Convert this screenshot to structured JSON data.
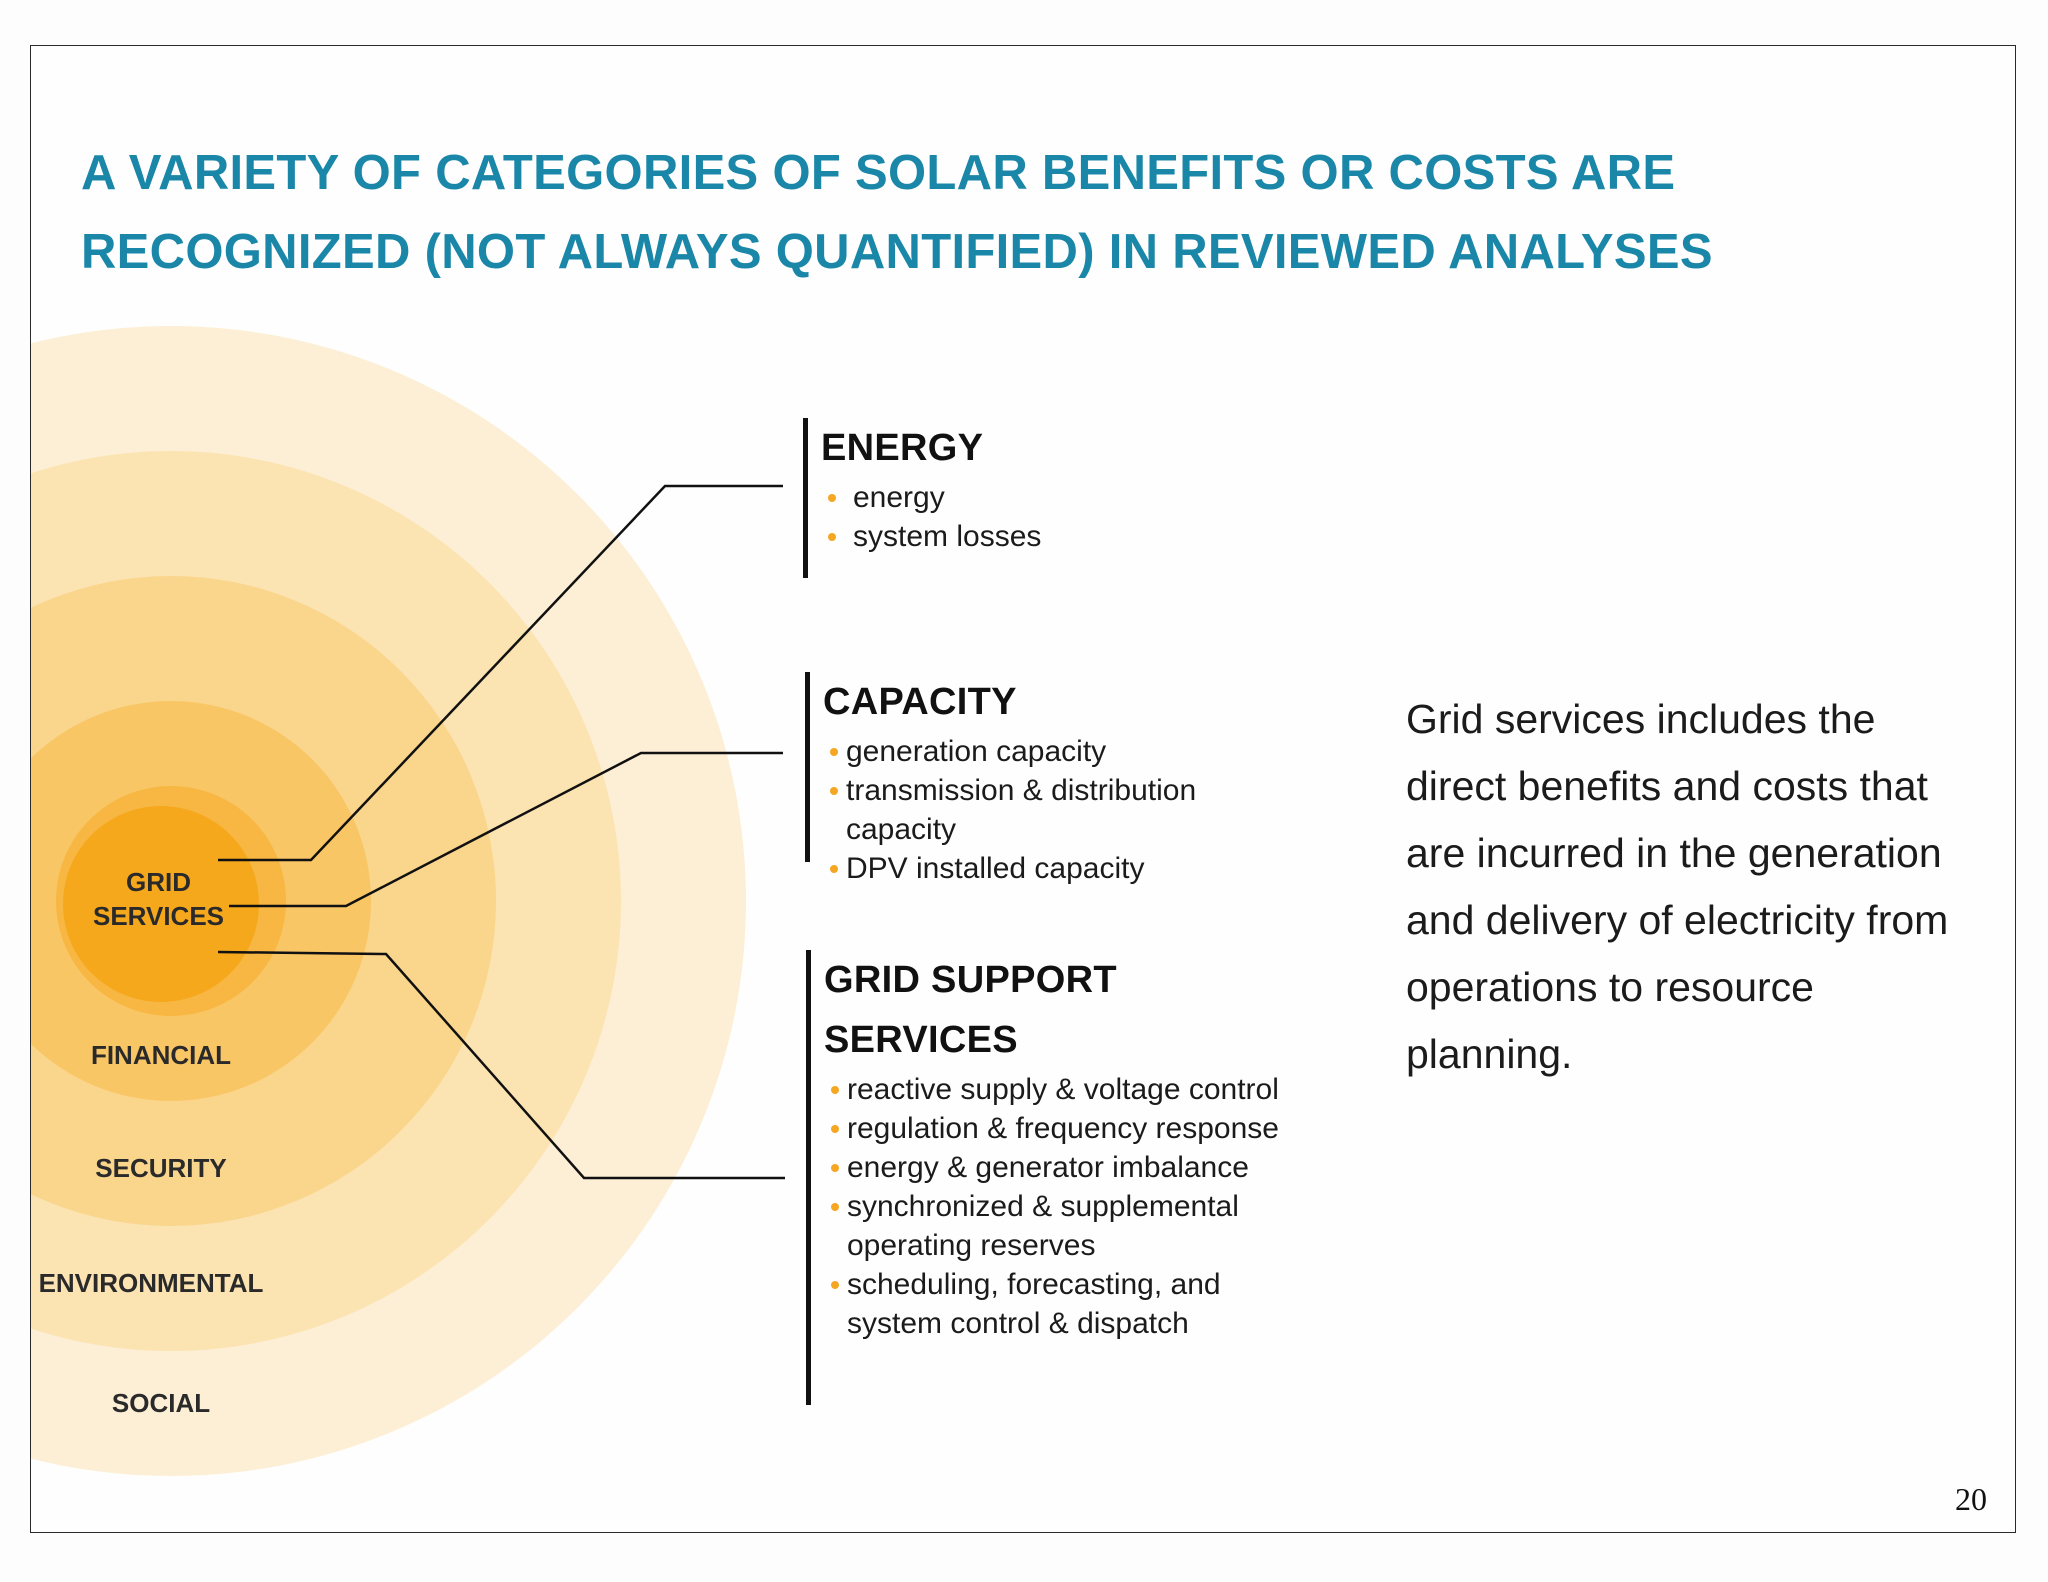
{
  "title": {
    "line1": "A VARIETY OF CATEGORIES OF SOLAR BENEFITS OR COSTS ARE",
    "line2": "RECOGNIZED (NOT ALWAYS QUANTIFIED) IN REVIEWED ANALYSES"
  },
  "rings": {
    "core": "GRID SERVICES",
    "labels": [
      "FINANCIAL",
      "SECURITY",
      "ENVIRONMENTAL",
      "SOCIAL"
    ],
    "colors": [
      "#f6a81d",
      "#f7b742",
      "#f9c665",
      "#fad58c",
      "#fce3b2",
      "#fdefd5"
    ]
  },
  "groups": [
    {
      "heading": "ENERGY",
      "items": [
        "energy",
        "system losses"
      ]
    },
    {
      "heading": "CAPACITY",
      "items": [
        "generation capacity",
        "transmission & distribution capacity",
        "DPV installed capacity"
      ]
    },
    {
      "heading": "GRID SUPPORT SERVICES",
      "items": [
        "reactive supply & voltage control",
        "regulation & frequency response",
        "energy & generator imbalance",
        "synchronized & supplemental operating reserves",
        "scheduling, forecasting, and system control & dispatch"
      ]
    }
  ],
  "description": "Grid services includes the direct benefits and costs that are incurred in the generation and delivery of electricity from operations to resource planning.",
  "page_number": "20",
  "accent_color": "#1a87a8",
  "bullet_color": "#f5a623"
}
